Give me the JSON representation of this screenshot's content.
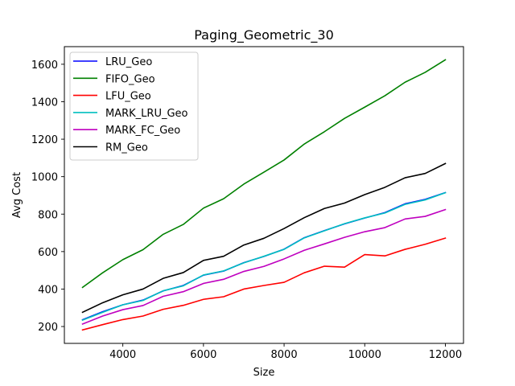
{
  "chart_data": {
    "type": "line",
    "title": "Paging_Geometric_30",
    "xlabel": "Size",
    "ylabel": "Avg Cost",
    "xlim": [
      2550,
      12450
    ],
    "ylim": [
      110,
      1694
    ],
    "xticks": [
      4000,
      6000,
      8000,
      10000,
      12000
    ],
    "yticks": [
      200,
      400,
      600,
      800,
      1000,
      1200,
      1400,
      1600
    ],
    "grid": false,
    "legend_position": "upper left",
    "x": [
      3000,
      3500,
      4000,
      4500,
      5000,
      5500,
      6000,
      6500,
      7000,
      7500,
      8000,
      8500,
      9000,
      9500,
      10000,
      10500,
      11000,
      11500,
      12000
    ],
    "series": [
      {
        "name": "LRU_Geo",
        "color": "#0000ff",
        "values": [
          236,
          279,
          316,
          341,
          390,
          419,
          474,
          496,
          541,
          574,
          613,
          674,
          712,
          748,
          779,
          808,
          855,
          879,
          915
        ]
      },
      {
        "name": "FIFO_Geo",
        "color": "#008000",
        "values": [
          409,
          487,
          557,
          610,
          692,
          745,
          832,
          882,
          960,
          1024,
          1089,
          1174,
          1240,
          1311,
          1371,
          1432,
          1504,
          1557,
          1624
        ]
      },
      {
        "name": "LFU_Geo",
        "color": "#ff0000",
        "values": [
          182,
          210,
          237,
          256,
          292,
          313,
          345,
          359,
          400,
          419,
          436,
          487,
          522,
          517,
          584,
          577,
          612,
          639,
          672
        ]
      },
      {
        "name": "MARK_LRU_Geo",
        "color": "#00bfbf",
        "values": [
          234,
          276,
          316,
          339,
          391,
          417,
          475,
          497,
          540,
          575,
          612,
          673,
          711,
          749,
          780,
          806,
          852,
          876,
          914
        ]
      },
      {
        "name": "MARK_FC_Geo",
        "color": "#bf00bf",
        "values": [
          213,
          256,
          290,
          312,
          361,
          386,
          430,
          452,
          494,
          521,
          561,
          607,
          641,
          676,
          706,
          728,
          774,
          788,
          824
        ]
      },
      {
        "name": "RM_Geo",
        "color": "#000000",
        "values": [
          276,
          327,
          369,
          400,
          457,
          488,
          553,
          575,
          635,
          671,
          723,
          781,
          830,
          859,
          904,
          943,
          994,
          1017,
          1070
        ]
      }
    ]
  }
}
